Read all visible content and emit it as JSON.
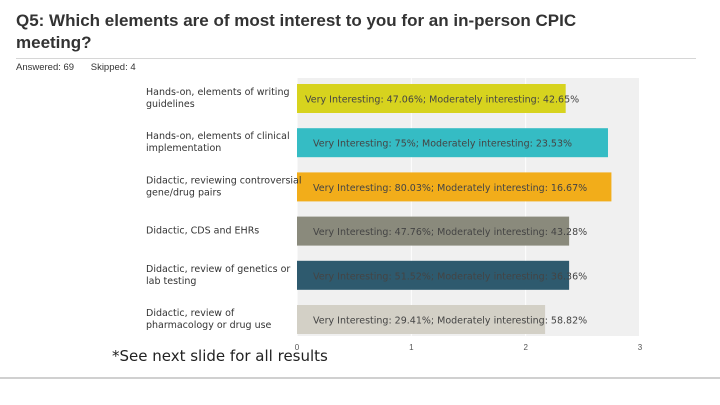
{
  "header": {
    "title": "Q5: Which elements are of most interest to you for an in-person CPIC meeting?",
    "answered": "Answered: 69",
    "skipped": "Skipped: 4"
  },
  "footnote": "*See next slide for all results",
  "chart_data": {
    "type": "bar",
    "orientation": "horizontal",
    "title": "",
    "xlabel": "",
    "ylabel": "",
    "xlim": [
      0,
      3
    ],
    "ticks": [
      "0",
      "1",
      "2",
      "3"
    ],
    "categories": [
      "Hands-on, elements of writing guidelines",
      "Hands-on, elements of clinical implementation",
      "Didactic, reviewing controversial gene/drug pairs",
      "Didactic, CDS and EHRs",
      "Didactic, review of genetics or lab testing",
      "Didactic, review of pharmacology or drug use"
    ],
    "values": [
      2.35,
      2.72,
      2.75,
      2.38,
      2.38,
      2.17
    ],
    "colors": [
      "#d7d31e",
      "#35bcc4",
      "#f2ad1a",
      "#8a8a7c",
      "#2e5a6e",
      "#d3d0c6"
    ],
    "data_labels": [
      "Very Interesting: 47.06%; Moderately interesting: 42.65%",
      "Very Interesting: 75%; Moderately interesting: 23.53%",
      "Very Interesting: 80.03%; Moderately interesting: 16.67%",
      "Very Interesting: 47.76%; Moderately interesting: 43.28%",
      "Very Interesting: 51.52%; Moderately interesting: 36.36%",
      "Very Interesting: 29.41%; Moderately interesting: 58.82%"
    ],
    "category_label_lines": [
      [
        "Hands-on, elements of writing",
        "guidelines"
      ],
      [
        "Hands-on, elements of clinical",
        "implementation"
      ],
      [
        "Didactic, reviewing controversial",
        "gene/drug pairs"
      ],
      [
        "Didactic, CDS and EHRs"
      ],
      [
        "Didactic, review of genetics or",
        "lab testing"
      ],
      [
        "Didactic, review of",
        "pharmacology or drug use"
      ]
    ],
    "plot_background": "#f0f0f0"
  }
}
